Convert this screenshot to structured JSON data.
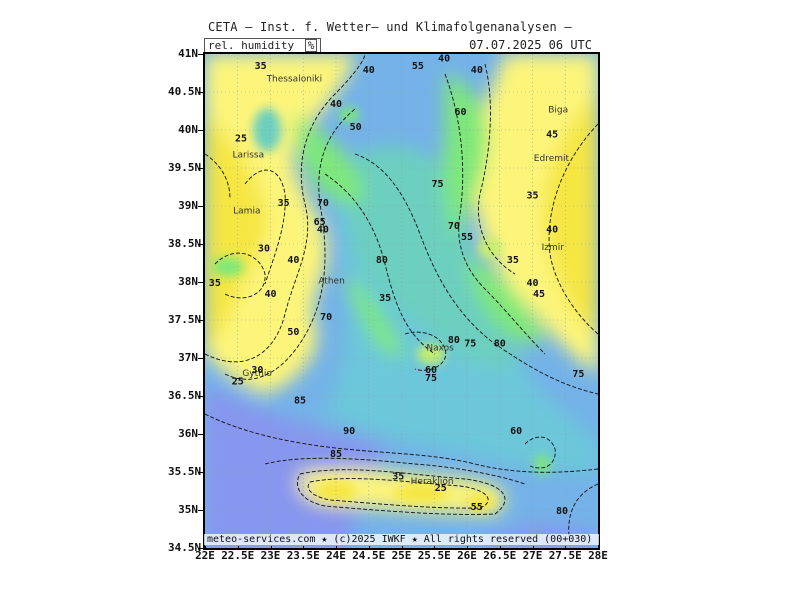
{
  "header": {
    "title": "CETA — Inst. f. Wetter— und Klimafolgenanalysen —",
    "parameter": "rel. humidity",
    "unit": "%",
    "time": "07.07.2025 06 UTC"
  },
  "footer": {
    "copyright": "meteo-services.com ★ (c)2025 IWKF ★ All rights reserved (00+030)"
  },
  "axes": {
    "lat_labels": [
      "41N",
      "40.5N",
      "40N",
      "39.5N",
      "39N",
      "38.5N",
      "38N",
      "37.5N",
      "37N",
      "36.5N",
      "36N",
      "35.5N",
      "35N",
      "34.5N"
    ],
    "lon_labels": [
      "22E",
      "22.5E",
      "23E",
      "23.5E",
      "24E",
      "24.5E",
      "25E",
      "25.5E",
      "26E",
      "26.5E",
      "27E",
      "27.5E",
      "28E"
    ]
  },
  "map": {
    "lat_range": [
      34.5,
      41
    ],
    "lon_range": [
      22,
      28
    ],
    "colors": {
      "rh_30": "#f5e642",
      "rh_40": "#fdf57a",
      "rh_50": "#c8f06a",
      "rh_60": "#7ee87a",
      "rh_70": "#49d98c",
      "rh_75": "#6ccfbf",
      "rh_80": "#6cc7da",
      "rh_85": "#74b2e8",
      "rh_90": "#8796ee",
      "contour": "#111111"
    },
    "cities": [
      {
        "name": "Thessaloniki",
        "lat": 40.64,
        "lon": 22.94
      },
      {
        "name": "Larissa",
        "lat": 39.64,
        "lon": 22.42
      },
      {
        "name": "Lamia",
        "lat": 38.9,
        "lon": 22.43
      },
      {
        "name": "Athen",
        "lat": 37.98,
        "lon": 23.73
      },
      {
        "name": "Izmir",
        "lat": 38.42,
        "lon": 27.14
      },
      {
        "name": "Edremit",
        "lat": 39.59,
        "lon": 27.02
      },
      {
        "name": "Naxos",
        "lat": 37.1,
        "lon": 25.38
      },
      {
        "name": "Heraklion",
        "lat": 35.34,
        "lon": 25.14
      },
      {
        "name": "Gythio",
        "lat": 36.76,
        "lon": 22.57
      },
      {
        "name": "Biga",
        "lat": 40.23,
        "lon": 27.24
      }
    ],
    "value_labels": [
      {
        "v": "35",
        "lat": 40.8,
        "lon": 22.85
      },
      {
        "v": "40",
        "lat": 40.75,
        "lon": 24.5
      },
      {
        "v": "55",
        "lat": 40.8,
        "lon": 25.25
      },
      {
        "v": "40",
        "lat": 40.9,
        "lon": 25.65
      },
      {
        "v": "40",
        "lat": 40.75,
        "lon": 26.15
      },
      {
        "v": "40",
        "lat": 40.3,
        "lon": 24.0
      },
      {
        "v": "60",
        "lat": 40.2,
        "lon": 25.9
      },
      {
        "v": "25",
        "lat": 39.85,
        "lon": 22.55
      },
      {
        "v": "50",
        "lat": 40.0,
        "lon": 24.3
      },
      {
        "v": "45",
        "lat": 39.9,
        "lon": 27.3
      },
      {
        "v": "75",
        "lat": 39.25,
        "lon": 25.55
      },
      {
        "v": "35",
        "lat": 39.1,
        "lon": 27.0
      },
      {
        "v": "35",
        "lat": 39.0,
        "lon": 23.2
      },
      {
        "v": "70",
        "lat": 39.0,
        "lon": 23.8
      },
      {
        "v": "65",
        "lat": 38.75,
        "lon": 23.75
      },
      {
        "v": "40",
        "lat": 38.65,
        "lon": 23.8
      },
      {
        "v": "40",
        "lat": 38.65,
        "lon": 27.3
      },
      {
        "v": "70",
        "lat": 38.7,
        "lon": 25.8
      },
      {
        "v": "55",
        "lat": 38.55,
        "lon": 26.0
      },
      {
        "v": "30",
        "lat": 38.4,
        "lon": 22.9
      },
      {
        "v": "40",
        "lat": 38.25,
        "lon": 23.35
      },
      {
        "v": "80",
        "lat": 38.25,
        "lon": 24.7
      },
      {
        "v": "35",
        "lat": 38.25,
        "lon": 26.7
      },
      {
        "v": "35",
        "lat": 37.95,
        "lon": 22.15
      },
      {
        "v": "40",
        "lat": 37.95,
        "lon": 27.0
      },
      {
        "v": "40",
        "lat": 37.8,
        "lon": 23.0
      },
      {
        "v": "45",
        "lat": 37.8,
        "lon": 27.1
      },
      {
        "v": "35",
        "lat": 37.75,
        "lon": 24.75
      },
      {
        "v": "70",
        "lat": 37.5,
        "lon": 23.85
      },
      {
        "v": "80",
        "lat": 37.2,
        "lon": 25.8
      },
      {
        "v": "75",
        "lat": 37.15,
        "lon": 26.05
      },
      {
        "v": "80",
        "lat": 37.15,
        "lon": 26.5
      },
      {
        "v": "50",
        "lat": 37.3,
        "lon": 23.35
      },
      {
        "v": "30",
        "lat": 36.8,
        "lon": 22.8
      },
      {
        "v": "60",
        "lat": 36.8,
        "lon": 25.45
      },
      {
        "v": "75",
        "lat": 36.7,
        "lon": 25.45
      },
      {
        "v": "25",
        "lat": 36.65,
        "lon": 22.5
      },
      {
        "v": "85",
        "lat": 36.4,
        "lon": 23.45
      },
      {
        "v": "75",
        "lat": 36.75,
        "lon": 27.7
      },
      {
        "v": "60",
        "lat": 36.0,
        "lon": 26.75
      },
      {
        "v": "90",
        "lat": 36.0,
        "lon": 24.2
      },
      {
        "v": "85",
        "lat": 35.7,
        "lon": 24.0
      },
      {
        "v": "35",
        "lat": 35.4,
        "lon": 24.95
      },
      {
        "v": "25",
        "lat": 35.25,
        "lon": 25.6
      },
      {
        "v": "80",
        "lat": 34.95,
        "lon": 27.45
      },
      {
        "v": "55",
        "lat": 35.0,
        "lon": 26.15
      }
    ]
  }
}
